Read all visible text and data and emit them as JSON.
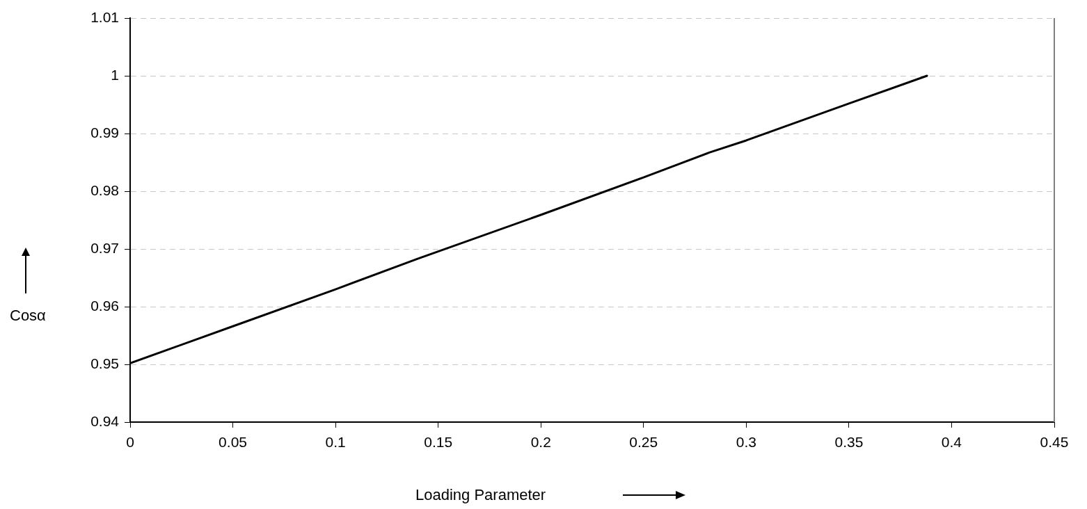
{
  "chart_data": {
    "type": "line",
    "xlabel": "Loading Parameter",
    "ylabel": "Cosα",
    "x": [
      0,
      0.05,
      0.1,
      0.14,
      0.2,
      0.25,
      0.282,
      0.3,
      0.35,
      0.388
    ],
    "series": [
      {
        "color": "#000000",
        "values": [
          0.9502,
          0.9566,
          0.963,
          0.9683,
          0.9759,
          0.9824,
          0.9867,
          0.9888,
          0.9952,
          1.0
        ]
      }
    ],
    "xlim": [
      0,
      0.45
    ],
    "xticks": [
      0,
      0.05,
      0.1,
      0.15,
      0.2,
      0.25,
      0.3,
      0.35,
      0.4,
      0.45
    ],
    "ylim": [
      0.94,
      1.01
    ],
    "yticks": [
      0.94,
      0.95,
      0.96,
      0.97,
      0.98,
      0.99,
      1,
      1.01
    ],
    "grid": "y",
    "legend": false,
    "marker": "none",
    "line_style": "solid"
  }
}
